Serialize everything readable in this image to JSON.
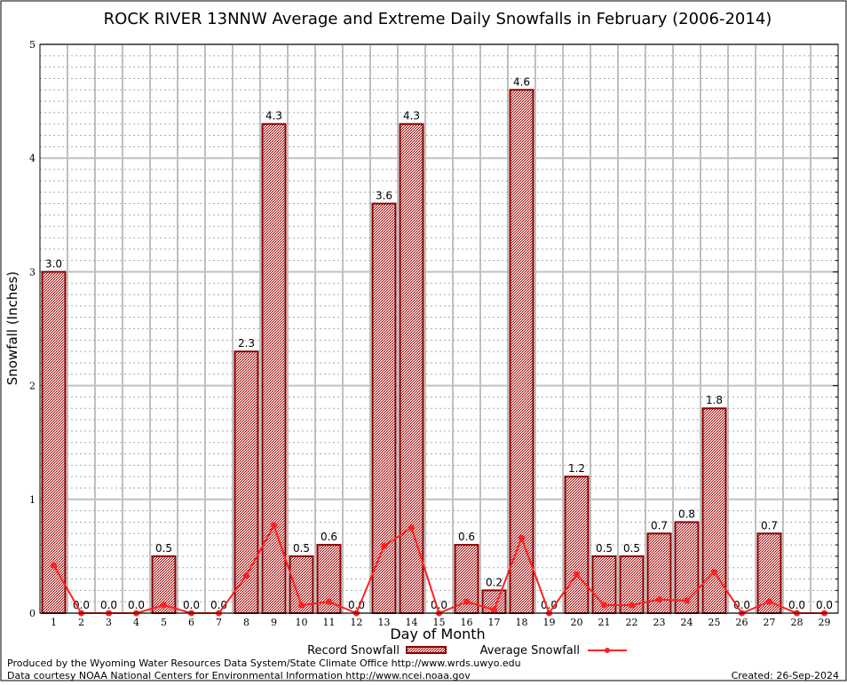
{
  "chart_data": {
    "type": "bar",
    "title": "ROCK RIVER 13NNW Average and Extreme Daily Snowfalls in February (2006-2014)",
    "xlabel": "Day of Month",
    "ylabel": "Snowfall (Inches)",
    "ylim": [
      0,
      5
    ],
    "yticks": [
      "0",
      "1",
      "2",
      "3",
      "4",
      "5"
    ],
    "grid": true,
    "legend_placement": "bottom",
    "categories": [
      "1",
      "2",
      "3",
      "4",
      "5",
      "6",
      "7",
      "8",
      "9",
      "10",
      "11",
      "12",
      "13",
      "14",
      "15",
      "16",
      "17",
      "18",
      "19",
      "20",
      "21",
      "22",
      "23",
      "24",
      "25",
      "26",
      "27",
      "28",
      "29"
    ],
    "series": [
      {
        "name": "Record Snowfall",
        "type": "bar",
        "color": "#8b0000",
        "values": [
          3.0,
          0,
          0,
          0,
          0.5,
          0,
          0,
          2.3,
          4.3,
          0.5,
          0.6,
          0,
          3.6,
          4.3,
          0,
          0.6,
          0.2,
          4.6,
          0,
          1.2,
          0.5,
          0.5,
          0.7,
          0.8,
          1.8,
          0,
          0.7,
          0,
          0
        ],
        "labels": [
          "3.0",
          "0.0",
          "0.0",
          "0.0",
          "0.5",
          "0.0",
          "0.0",
          "2.3",
          "4.3",
          "0.5",
          "0.6",
          "0.0",
          "3.6",
          "4.3",
          "0.0",
          "0.6",
          "0.2",
          "4.6",
          "0.0",
          "1.2",
          "0.5",
          "0.5",
          "0.7",
          "0.8",
          "1.8",
          "0.0",
          "0.7",
          "0.0",
          "0.0"
        ]
      },
      {
        "name": "Average Snowfall",
        "type": "line",
        "color": "#ff2020",
        "values": [
          0.42,
          0,
          0,
          0,
          0.07,
          0,
          0,
          0.33,
          0.77,
          0.07,
          0.1,
          0,
          0.59,
          0.75,
          0,
          0.1,
          0.03,
          0.66,
          0,
          0.34,
          0.07,
          0.07,
          0.12,
          0.11,
          0.36,
          0,
          0.1,
          0,
          0
        ]
      }
    ]
  },
  "footer": {
    "produced": "Produced by the Wyoming Water Resources Data System/State Climate Office http://www.wrds.uwyo.edu",
    "courtesy": "Data courtesy NOAA National Centers for Environmental Information http://www.ncei.noaa.gov",
    "created": "Created: 26-Sep-2024"
  }
}
